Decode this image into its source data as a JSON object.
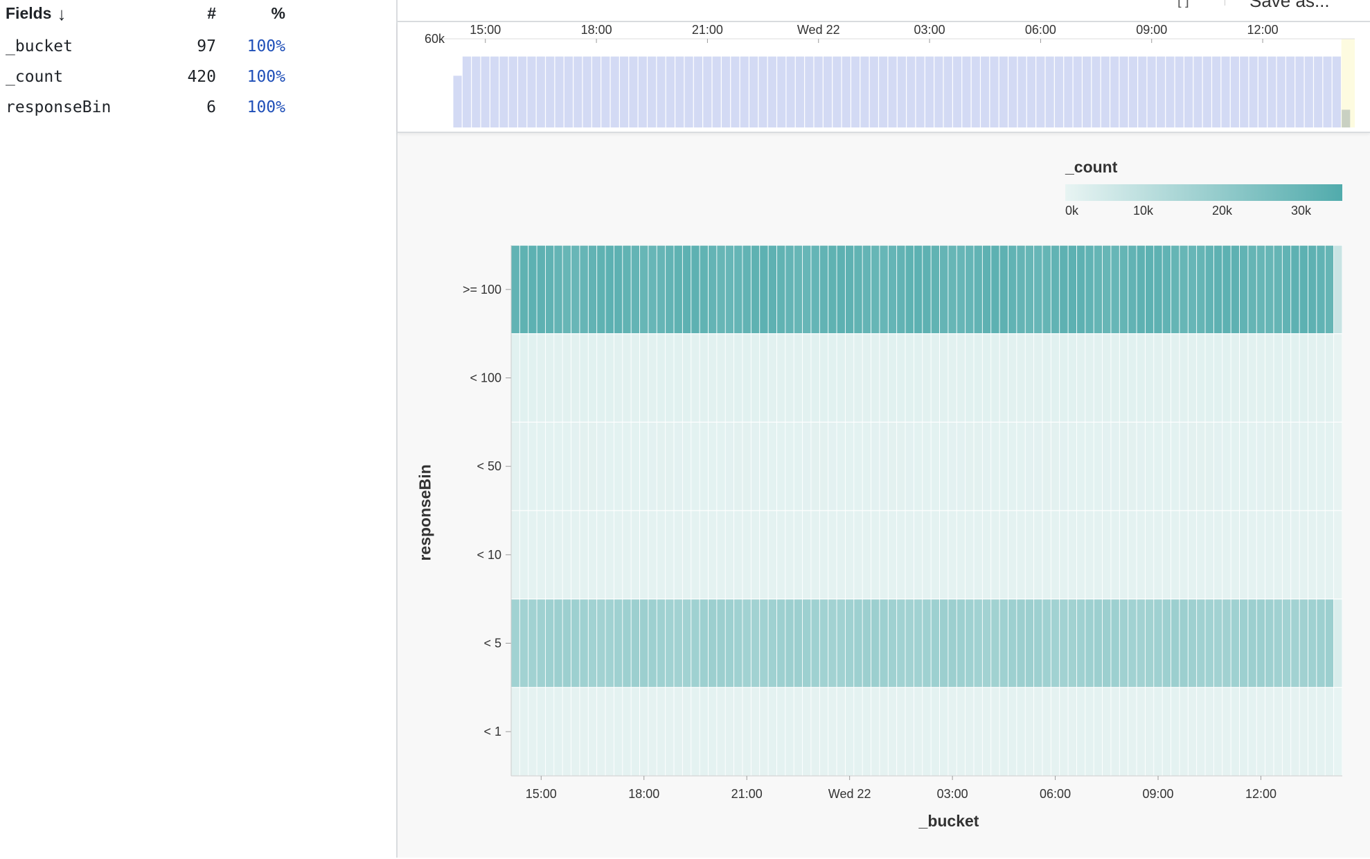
{
  "fields": {
    "header": {
      "title": "Fields",
      "sort_icon": "arrow-down-icon",
      "sort_glyph": "↓",
      "count_label": "#",
      "pct_label": "%"
    },
    "rows": [
      {
        "name": "_bucket",
        "count": "97",
        "pct": "100%"
      },
      {
        "name": "_count",
        "count": "420",
        "pct": "100%"
      },
      {
        "name": "responseBin",
        "count": "6",
        "pct": "100%"
      }
    ]
  },
  "toolbar": {
    "icon_glyph": "[ ]",
    "save_label": "Save as..."
  },
  "chart_data": [
    {
      "type": "bar",
      "title": "",
      "ylim": [
        0,
        60000
      ],
      "yticks": [
        "60k"
      ],
      "xticks": [
        "15:00",
        "18:00",
        "21:00",
        "Wed 22",
        "03:00",
        "06:00",
        "09:00",
        "12:00"
      ],
      "bar_count": 97,
      "typical_value": 48000,
      "first_value": 35000,
      "last_value": 12000,
      "colors": {
        "bar": "#d3daf4",
        "bar_border": "#b8c3ec",
        "highlight": "#fdfbe0"
      }
    },
    {
      "type": "heatmap",
      "xlabel": "_bucket",
      "ylabel": "responseBin",
      "categories_y": [
        ">= 100",
        "< 100",
        "< 50",
        "< 10",
        "< 5",
        "< 1"
      ],
      "xticks": [
        "15:00",
        "18:00",
        "21:00",
        "Wed 22",
        "03:00",
        "06:00",
        "09:00",
        "12:00"
      ],
      "bucket_count": 97,
      "typical_values": {
        ">= 100": 31000,
        "< 100": 1500,
        "< 50": 1200,
        "< 10": 1000,
        "< 5": 17000,
        "< 1": 800
      },
      "last_bucket_values": {
        ">= 100": 7500,
        "< 100": 300,
        "< 50": 300,
        "< 10": 300,
        "< 5": 3500,
        "< 1": 200
      },
      "color_scale": {
        "name": "_count",
        "min": 0,
        "max": 35000,
        "low": "#e8f4f3",
        "high": "#51abac",
        "ticks": [
          "0k",
          "10k",
          "20k",
          "30k"
        ]
      }
    }
  ]
}
